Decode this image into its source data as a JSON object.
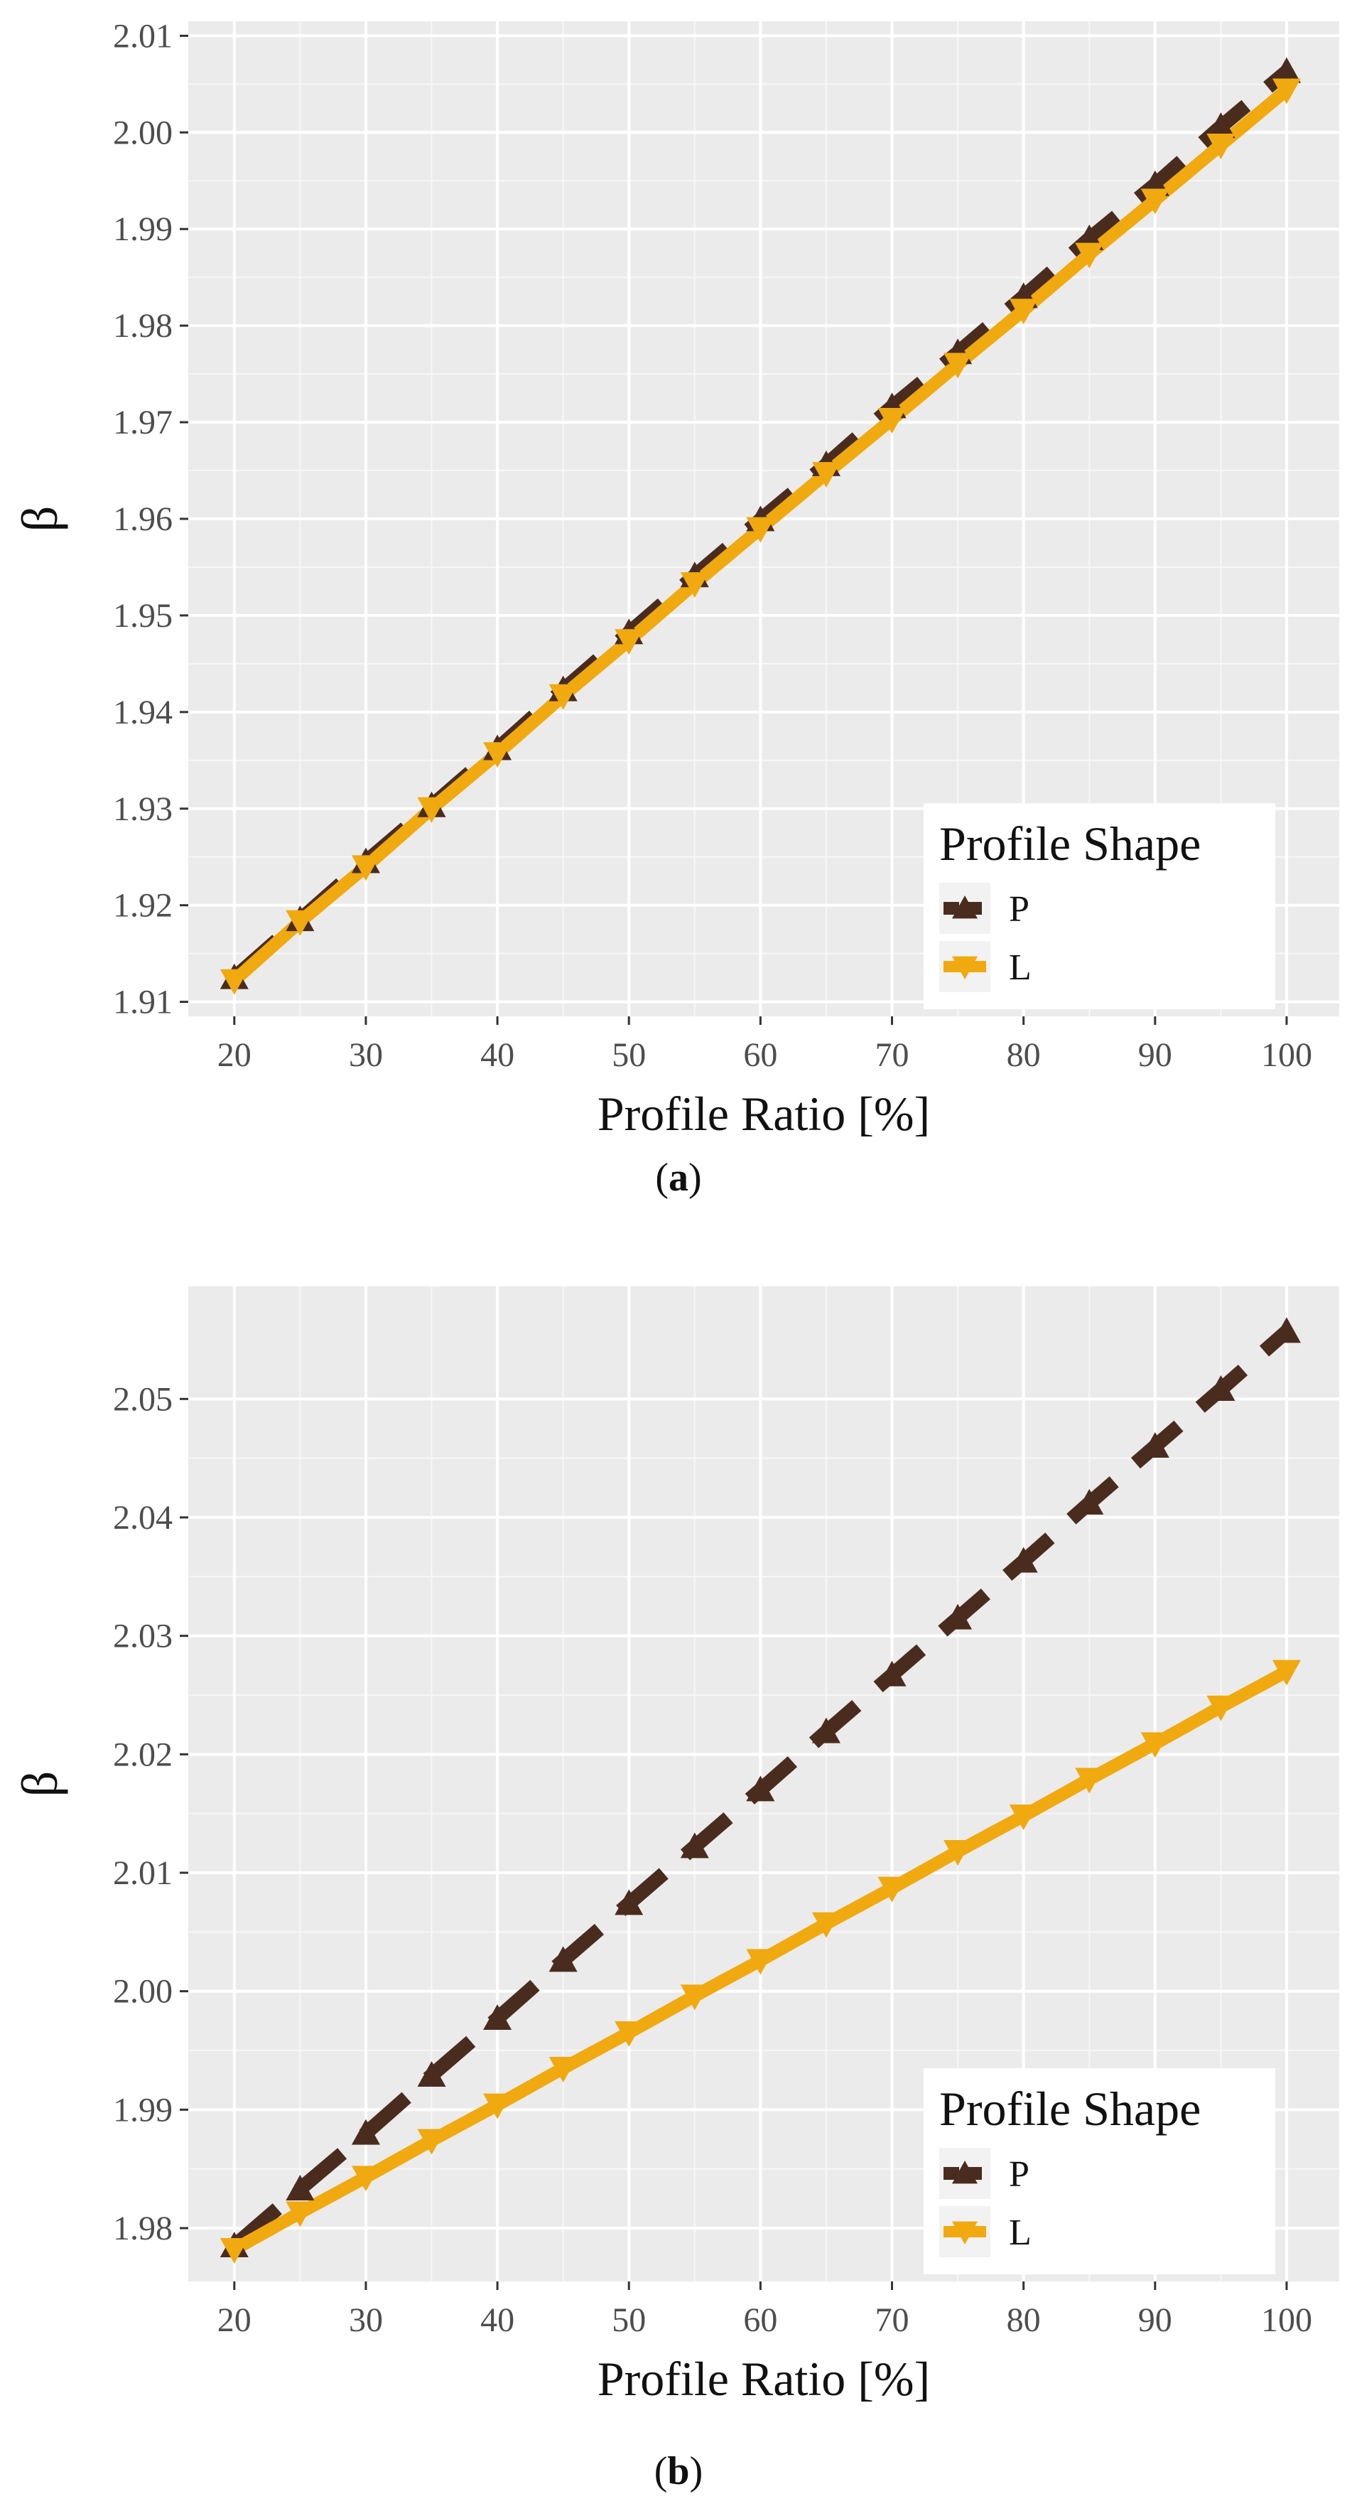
{
  "chart_data": [
    {
      "type": "line",
      "panel_label": "a",
      "xlabel": "Profile Ratio [%]",
      "ylabel": "β",
      "xlim": [
        16.5,
        104
      ],
      "ylim": [
        1.9085,
        2.0115
      ],
      "xticks": [
        20,
        30,
        40,
        50,
        60,
        70,
        80,
        90,
        100
      ],
      "yticks": [
        1.91,
        1.92,
        1.93,
        1.94,
        1.95,
        1.96,
        1.97,
        1.98,
        1.99,
        2.0,
        2.01
      ],
      "ytick_labels": [
        "1.91",
        "1.92",
        "1.93",
        "1.94",
        "1.95",
        "1.96",
        "1.97",
        "1.98",
        "1.99",
        "2.00",
        "2.01"
      ],
      "x": [
        20,
        25,
        30,
        35,
        40,
        45,
        50,
        55,
        60,
        65,
        70,
        75,
        80,
        85,
        90,
        95,
        100
      ],
      "series": [
        {
          "name": "P",
          "style": "dashed",
          "marker": "triangle-up",
          "color": "#4a2c1e",
          "values": [
            1.9125,
            1.9185,
            1.9245,
            1.9303,
            1.9362,
            1.9423,
            1.9482,
            1.9541,
            1.9599,
            1.9656,
            1.9716,
            1.9772,
            1.983,
            1.989,
            1.9946,
            2.0006,
            2.0063
          ]
        },
        {
          "name": "L",
          "style": "solid",
          "marker": "triangle-down",
          "color": "#f0a90f",
          "values": [
            1.9122,
            1.9183,
            1.924,
            1.93,
            1.9357,
            1.9417,
            1.9474,
            1.9533,
            1.959,
            1.9647,
            1.9703,
            1.976,
            1.9816,
            1.9874,
            1.993,
            1.9987,
            2.0044
          ]
        }
      ],
      "legend": {
        "title": "Profile Shape",
        "position": "bottom-right",
        "entries": [
          "P",
          "L"
        ]
      }
    },
    {
      "type": "line",
      "panel_label": "b",
      "xlabel": "Profile Ratio [%]",
      "ylabel": "β",
      "xlim": [
        16.5,
        104
      ],
      "ylim": [
        1.9755,
        2.0595
      ],
      "xticks": [
        20,
        30,
        40,
        50,
        60,
        70,
        80,
        90,
        100
      ],
      "yticks": [
        1.98,
        1.99,
        2.0,
        2.01,
        2.02,
        2.03,
        2.04,
        2.05
      ],
      "ytick_labels": [
        "1.98",
        "1.99",
        "2.00",
        "2.01",
        "2.02",
        "2.03",
        "2.04",
        "2.05"
      ],
      "x": [
        20,
        25,
        30,
        35,
        40,
        45,
        50,
        55,
        60,
        65,
        70,
        75,
        80,
        85,
        90,
        95,
        100
      ],
      "series": [
        {
          "name": "P",
          "style": "dashed",
          "marker": "triangle-up",
          "color": "#4a2c1e",
          "values": [
            1.9785,
            1.9833,
            1.988,
            1.9929,
            1.9977,
            2.0026,
            2.0074,
            2.0122,
            2.017,
            2.0219,
            2.0267,
            2.0315,
            2.0363,
            2.0412,
            2.046,
            2.0508,
            2.0557
          ]
        },
        {
          "name": "L",
          "style": "solid",
          "marker": "triangle-down",
          "color": "#f0a90f",
          "values": [
            1.9782,
            1.9813,
            1.9843,
            1.9874,
            1.9904,
            1.9935,
            1.9965,
            1.9996,
            2.0026,
            2.0057,
            2.0087,
            2.0118,
            2.0148,
            2.0179,
            2.0209,
            2.024,
            2.027
          ]
        }
      ],
      "legend": {
        "title": "Profile Shape",
        "position": "bottom-right",
        "entries": [
          "P",
          "L"
        ]
      }
    }
  ]
}
